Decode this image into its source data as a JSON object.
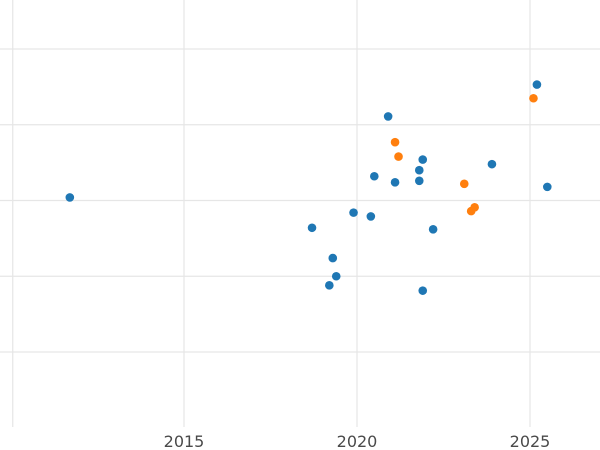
{
  "chart_data": {
    "type": "scatter",
    "title": "",
    "xlabel": "",
    "ylabel": "",
    "xlim": [
      2010.0,
      2026.6
    ],
    "ylim": [
      0,
      5.7
    ],
    "x_ticks": [
      2015,
      2020,
      2025
    ],
    "x_tick_labels": [
      "2015",
      "2020",
      "2025"
    ],
    "y_ticks": [
      1,
      2,
      3,
      4,
      5
    ],
    "grid": true,
    "legend": "none",
    "series": [
      {
        "color": "#1f77b4",
        "points": [
          {
            "x": 2011.7,
            "y": 3.04
          },
          {
            "x": 2018.7,
            "y": 2.64
          },
          {
            "x": 2019.2,
            "y": 1.88
          },
          {
            "x": 2019.3,
            "y": 2.24
          },
          {
            "x": 2019.4,
            "y": 2.0
          },
          {
            "x": 2019.9,
            "y": 2.84
          },
          {
            "x": 2020.4,
            "y": 2.79
          },
          {
            "x": 2020.5,
            "y": 3.32
          },
          {
            "x": 2020.9,
            "y": 4.11
          },
          {
            "x": 2021.1,
            "y": 3.24
          },
          {
            "x": 2021.8,
            "y": 3.4
          },
          {
            "x": 2021.8,
            "y": 3.26
          },
          {
            "x": 2021.9,
            "y": 3.54
          },
          {
            "x": 2021.9,
            "y": 1.81
          },
          {
            "x": 2022.2,
            "y": 2.62
          },
          {
            "x": 2023.9,
            "y": 3.48
          },
          {
            "x": 2025.2,
            "y": 4.53
          },
          {
            "x": 2025.5,
            "y": 3.18
          }
        ]
      },
      {
        "color": "#ff7f0e",
        "points": [
          {
            "x": 2021.1,
            "y": 3.77
          },
          {
            "x": 2021.2,
            "y": 3.58
          },
          {
            "x": 2023.1,
            "y": 3.22
          },
          {
            "x": 2023.3,
            "y": 2.86
          },
          {
            "x": 2023.4,
            "y": 2.91
          },
          {
            "x": 2025.1,
            "y": 4.35
          }
        ]
      }
    ]
  }
}
